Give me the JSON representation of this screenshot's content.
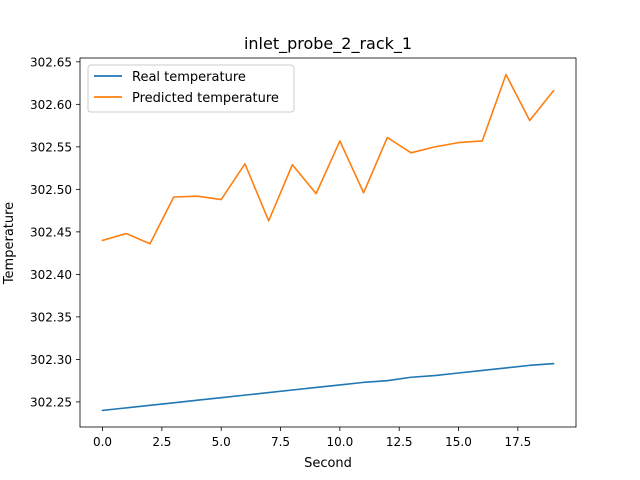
{
  "chart_data": {
    "type": "line",
    "title": "inlet_probe_2_rack_1",
    "xlabel": "Second",
    "ylabel": "Temperature",
    "xlim": [
      -0.95,
      19.95
    ],
    "ylim": [
      302.2205,
      302.6545
    ],
    "xticks": [
      0.0,
      2.5,
      5.0,
      7.5,
      10.0,
      12.5,
      15.0,
      17.5
    ],
    "xtick_labels": [
      "0.0",
      "2.5",
      "5.0",
      "7.5",
      "10.0",
      "12.5",
      "15.0",
      "17.5"
    ],
    "yticks": [
      302.25,
      302.3,
      302.35,
      302.4,
      302.45,
      302.5,
      302.55,
      302.6,
      302.65
    ],
    "ytick_labels": [
      "302.25",
      "302.30",
      "302.35",
      "302.40",
      "302.45",
      "302.50",
      "302.55",
      "302.60",
      "302.65"
    ],
    "grid": false,
    "legend_position": "top-left",
    "x": [
      0,
      1,
      2,
      3,
      4,
      5,
      6,
      7,
      8,
      9,
      10,
      11,
      12,
      13,
      14,
      15,
      16,
      17,
      18,
      19
    ],
    "series": [
      {
        "name": "Real temperature",
        "color": "#1f77b4",
        "values": [
          302.24,
          302.243,
          302.246,
          302.249,
          302.252,
          302.255,
          302.258,
          302.261,
          302.264,
          302.267,
          302.27,
          302.273,
          302.275,
          302.279,
          302.281,
          302.284,
          302.287,
          302.29,
          302.293,
          302.295
        ]
      },
      {
        "name": "Predicted temperature",
        "color": "#ff7f0e",
        "values": [
          302.44,
          302.448,
          302.436,
          302.491,
          302.492,
          302.488,
          302.53,
          302.463,
          302.529,
          302.495,
          302.557,
          302.496,
          302.561,
          302.543,
          302.55,
          302.555,
          302.557,
          302.635,
          302.581,
          302.616
        ]
      }
    ]
  }
}
